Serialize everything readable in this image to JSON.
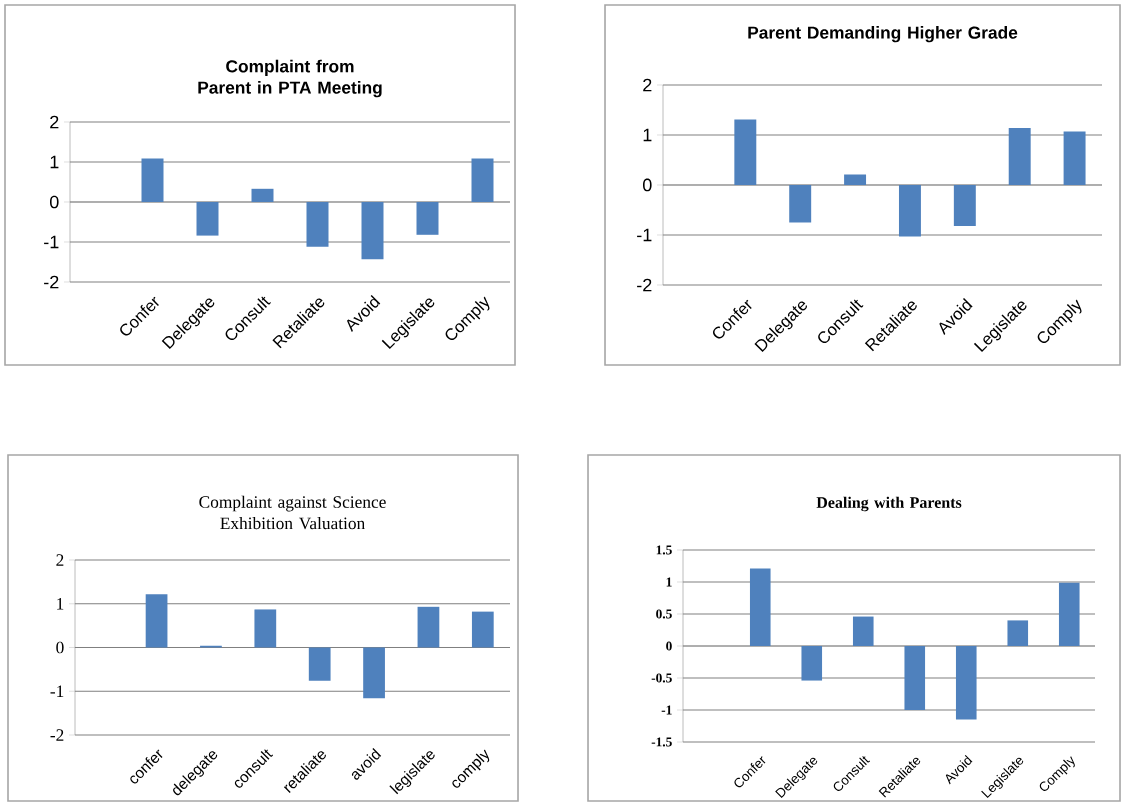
{
  "chart_data": [
    {
      "type": "bar",
      "title": "Complaint from Parent in PTA Meeting",
      "categories": [
        null,
        "Confer",
        "Delegate",
        "Consult",
        "Retaliate",
        "Avoid",
        "Legislate",
        "Comply"
      ],
      "values": [
        null,
        1.09,
        -0.84,
        0.33,
        -1.12,
        -1.43,
        -0.82,
        1.09
      ],
      "color": "#4f81bd",
      "ylim": [
        -2,
        2
      ],
      "yticks": [
        -2,
        -1,
        0,
        1,
        2
      ],
      "grid": "y"
    },
    {
      "type": "bar",
      "title": "Parent Demanding Higher Grade",
      "categories": [
        null,
        "Confer",
        "Delegate",
        "Consult",
        "Retaliate",
        "Avoid",
        "Legislate",
        "Comply"
      ],
      "values": [
        null,
        1.31,
        -0.75,
        0.21,
        -1.03,
        -0.82,
        1.14,
        1.07
      ],
      "color": "#4f81bd",
      "ylim": [
        -2,
        2
      ],
      "yticks": [
        -2,
        -1,
        0,
        1,
        2
      ],
      "grid": "y"
    },
    {
      "type": "bar",
      "title": "Complaint against Science Exhibition Valuation",
      "categories": [
        null,
        "confer",
        "delegate",
        "consult",
        "retaliate",
        "avoid",
        "legislate",
        "comply"
      ],
      "values": [
        null,
        1.22,
        0.04,
        0.87,
        -0.76,
        -1.16,
        0.93,
        0.82
      ],
      "color": "#4f81bd",
      "ylim": [
        -2,
        2
      ],
      "yticks": [
        -2,
        -1,
        0,
        1,
        2
      ],
      "grid": "y"
    },
    {
      "type": "bar",
      "title": "Dealing with Parents",
      "categories": [
        null,
        "Confer",
        "Delegate",
        "Consult",
        "Retaliate",
        "Avoid",
        "Legislate",
        "Comply"
      ],
      "values": [
        null,
        1.21,
        -0.54,
        0.46,
        -1.0,
        -1.15,
        0.4,
        0.99
      ],
      "color": "#4f81bd",
      "ylim": [
        -1.5,
        1.5
      ],
      "yticks": [
        -1.5,
        -1,
        -0.5,
        0,
        0.5,
        1,
        1.5
      ],
      "grid": "y"
    }
  ]
}
